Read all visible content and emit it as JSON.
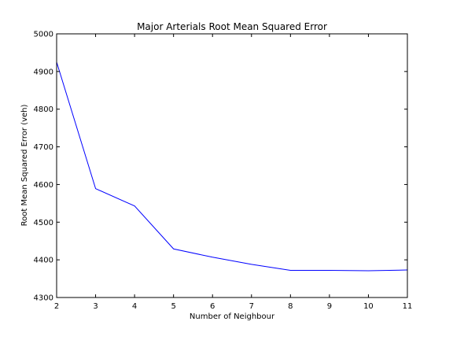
{
  "chart_data": {
    "type": "line",
    "title": "Major Arterials Root Mean Squared Error",
    "xlabel": "Number of Neighbour",
    "ylabel": "Root Mean Squared Error (veh)",
    "xlim": [
      2,
      11
    ],
    "ylim": [
      4300,
      5000
    ],
    "x_ticks": [
      2,
      3,
      4,
      5,
      6,
      7,
      8,
      9,
      10,
      11
    ],
    "y_ticks": [
      4300,
      4400,
      4500,
      4600,
      4700,
      4800,
      4900,
      5000
    ],
    "grid": false,
    "legend": "none",
    "series": [
      {
        "color": "#0000ff",
        "x": [
          2,
          3,
          4,
          5,
          6,
          7,
          8,
          9,
          10,
          11
        ],
        "y": [
          4925,
          4589,
          4543,
          4429,
          4407,
          4388,
          4372,
          4372,
          4371,
          4373
        ]
      }
    ]
  }
}
